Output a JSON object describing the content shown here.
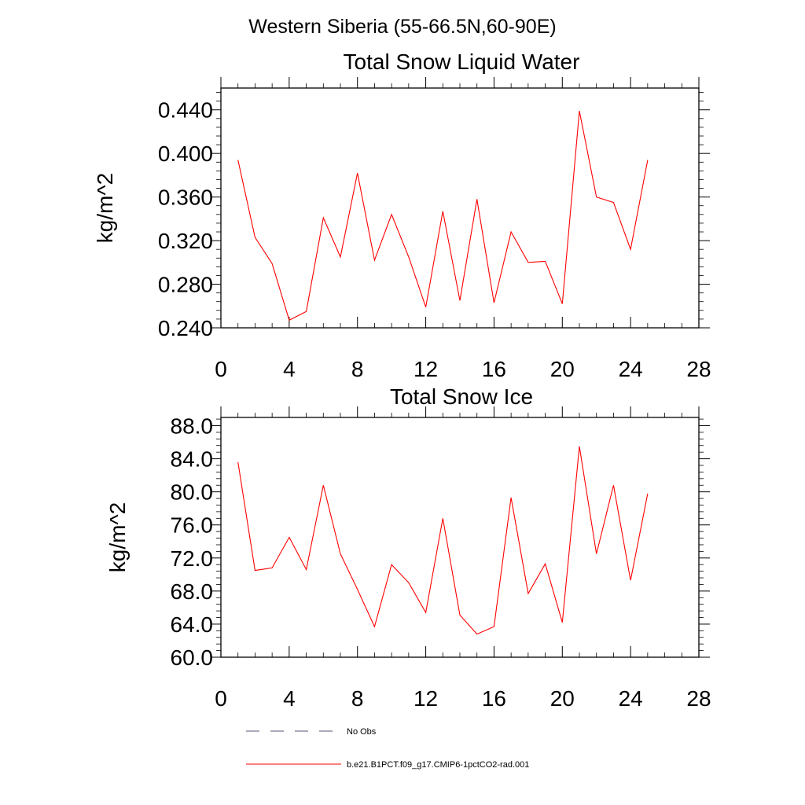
{
  "figure": {
    "suptitle": "Western Siberia (55-66.5N,60-90E)"
  },
  "chart_data": [
    {
      "type": "line",
      "title": "Total Snow Liquid Water",
      "xlabel": "",
      "ylabel": "kg/m^2",
      "xlim": [
        0,
        28
      ],
      "ylim": [
        0.24,
        0.46
      ],
      "xticks": [
        0,
        4,
        8,
        12,
        16,
        20,
        24,
        28
      ],
      "xtick_labels": [
        "0",
        "4",
        "8",
        "12",
        "16",
        "20",
        "24",
        "28"
      ],
      "yticks": [
        0.24,
        0.28,
        0.32,
        0.36,
        0.4,
        0.44
      ],
      "ytick_labels": [
        "0.240",
        "0.280",
        "0.320",
        "0.360",
        "0.400",
        "0.440"
      ],
      "grid": false,
      "series": [
        {
          "name": "b.e21.B1PCT.f09_g17.CMIP6-1pctCO2-rad.001",
          "color": "#ff0000",
          "x": [
            1,
            2,
            3,
            4,
            5,
            6,
            7,
            8,
            9,
            10,
            11,
            12,
            13,
            14,
            15,
            16,
            17,
            18,
            19,
            20,
            21,
            22,
            23,
            24,
            25
          ],
          "y": [
            0.394,
            0.323,
            0.299,
            0.247,
            0.255,
            0.341,
            0.305,
            0.382,
            0.302,
            0.344,
            0.305,
            0.259,
            0.347,
            0.265,
            0.358,
            0.263,
            0.328,
            0.3,
            0.301,
            0.262,
            0.439,
            0.36,
            0.355,
            0.312,
            0.394
          ]
        }
      ]
    },
    {
      "type": "line",
      "title": "Total Snow Ice",
      "xlabel": "",
      "ylabel": "kg/m^2",
      "xlim": [
        0,
        28
      ],
      "ylim": [
        60,
        89
      ],
      "xticks": [
        0,
        4,
        8,
        12,
        16,
        20,
        24,
        28
      ],
      "xtick_labels": [
        "0",
        "4",
        "8",
        "12",
        "16",
        "20",
        "24",
        "28"
      ],
      "yticks": [
        60,
        64,
        68,
        72,
        76,
        80,
        84,
        88
      ],
      "ytick_labels": [
        "60.0",
        "64.0",
        "68.0",
        "72.0",
        "76.0",
        "80.0",
        "84.0",
        "88.0"
      ],
      "grid": false,
      "series": [
        {
          "name": "b.e21.B1PCT.f09_g17.CMIP6-1pctCO2-rad.001",
          "color": "#ff0000",
          "x": [
            1,
            2,
            3,
            4,
            5,
            6,
            7,
            8,
            9,
            10,
            11,
            12,
            13,
            14,
            15,
            16,
            17,
            18,
            19,
            20,
            21,
            22,
            23,
            24,
            25
          ],
          "y": [
            83.6,
            70.5,
            70.8,
            74.5,
            70.6,
            80.8,
            72.5,
            68.2,
            63.7,
            71.2,
            69.0,
            65.4,
            76.8,
            65.1,
            62.8,
            63.7,
            79.3,
            67.7,
            71.3,
            64.2,
            85.5,
            72.5,
            80.8,
            69.3,
            79.8
          ]
        }
      ]
    }
  ],
  "legend": {
    "placement": "bottom-left",
    "items": [
      {
        "label": "No Obs",
        "color": "#555577",
        "style": "dashed"
      },
      {
        "label": "b.e21.B1PCT.f09_g17.CMIP6-1pctCO2-rad.001",
        "color": "#ff0000",
        "style": "solid"
      }
    ]
  }
}
